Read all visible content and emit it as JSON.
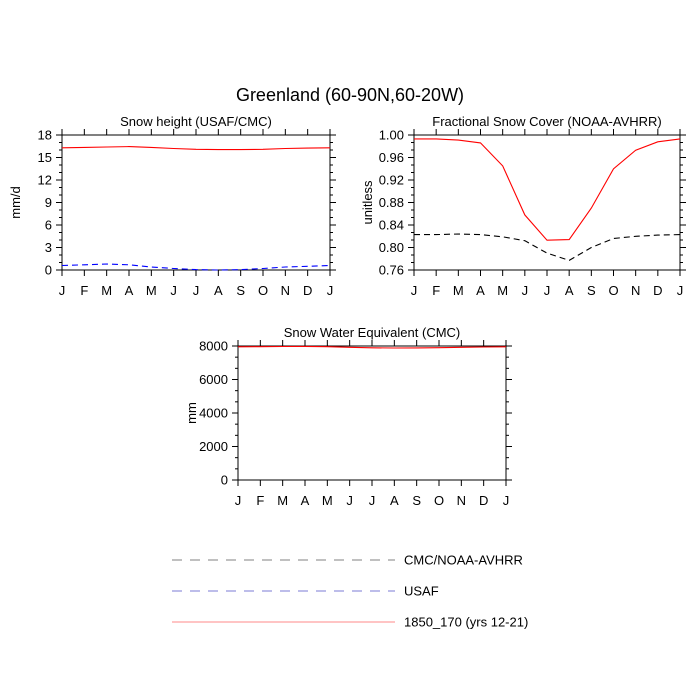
{
  "figure": {
    "title": "Greenland (60-90N,60-20W)"
  },
  "months": [
    "J",
    "F",
    "M",
    "A",
    "M",
    "J",
    "J",
    "A",
    "S",
    "O",
    "N",
    "D",
    "J"
  ],
  "legend": {
    "entries": [
      {
        "label": "CMC/NOAA-AVHRR",
        "color": "#808080",
        "dash": "dashed"
      },
      {
        "label": "USAF",
        "color": "#7b7bd6",
        "dash": "dashed"
      },
      {
        "label": "1850_170 (yrs 12-21)",
        "color": "#ff8a8a",
        "dash": "solid"
      }
    ]
  },
  "chart_data": [
    {
      "type": "line",
      "title": "Snow height (USAF/CMC)",
      "xlabel": "",
      "ylabel": "mm/d",
      "categories": [
        "J",
        "F",
        "M",
        "A",
        "M",
        "J",
        "J",
        "A",
        "S",
        "O",
        "N",
        "D",
        "J"
      ],
      "ylim": [
        0,
        18
      ],
      "yticks": [
        "0",
        "3",
        "6",
        "9",
        "12",
        "15",
        "18"
      ],
      "series": [
        {
          "name": "1850_170 (yrs 12-21)",
          "color": "#ff0000",
          "dash": "solid",
          "values": [
            16.3,
            16.35,
            16.4,
            16.45,
            16.35,
            16.2,
            16.1,
            16.05,
            16.05,
            16.1,
            16.2,
            16.25,
            16.3
          ]
        },
        {
          "name": "USAF",
          "color": "#0000ff",
          "dash": "dashed",
          "values": [
            0.6,
            0.7,
            0.8,
            0.7,
            0.4,
            0.2,
            0.05,
            0.0,
            0.05,
            0.2,
            0.4,
            0.5,
            0.6
          ]
        }
      ]
    },
    {
      "type": "line",
      "title": "Fractional Snow Cover (NOAA-AVHRR)",
      "xlabel": "",
      "ylabel": "unitless",
      "categories": [
        "J",
        "F",
        "M",
        "A",
        "M",
        "J",
        "J",
        "A",
        "S",
        "O",
        "N",
        "D",
        "J"
      ],
      "ylim": [
        0.76,
        1.0
      ],
      "yticks": [
        "0.76",
        "0.80",
        "0.84",
        "0.88",
        "0.92",
        "0.96",
        "1.00"
      ],
      "series": [
        {
          "name": "1850_170 (yrs 12-21)",
          "color": "#ff0000",
          "dash": "solid",
          "values": [
            0.993,
            0.993,
            0.991,
            0.986,
            0.945,
            0.858,
            0.813,
            0.814,
            0.87,
            0.94,
            0.973,
            0.988,
            0.993
          ]
        },
        {
          "name": "CMC/NOAA-AVHRR",
          "color": "#000000",
          "dash": "dashed",
          "values": [
            0.823,
            0.823,
            0.824,
            0.823,
            0.819,
            0.812,
            0.79,
            0.777,
            0.8,
            0.816,
            0.82,
            0.822,
            0.823
          ]
        }
      ]
    },
    {
      "type": "line",
      "title": "Snow Water Equivalent (CMC)",
      "xlabel": "",
      "ylabel": "mm",
      "categories": [
        "J",
        "F",
        "M",
        "A",
        "M",
        "J",
        "J",
        "A",
        "S",
        "O",
        "N",
        "D",
        "J"
      ],
      "ylim": [
        0,
        8000
      ],
      "yticks": [
        "0",
        "2000",
        "4000",
        "6000",
        "8000"
      ],
      "series": [
        {
          "name": "1850_170 (yrs 12-21)",
          "color": "#ff0000",
          "dash": "solid",
          "values": [
            7950,
            7960,
            7970,
            7975,
            7960,
            7920,
            7890,
            7880,
            7885,
            7900,
            7920,
            7940,
            7950
          ]
        },
        {
          "name": "CMC/NOAA-AVHRR",
          "color": "#000000",
          "dash": "dashed",
          "values": [
            0,
            0,
            0,
            0,
            0,
            0,
            0,
            0,
            0,
            0,
            0,
            0,
            0
          ]
        }
      ]
    }
  ]
}
